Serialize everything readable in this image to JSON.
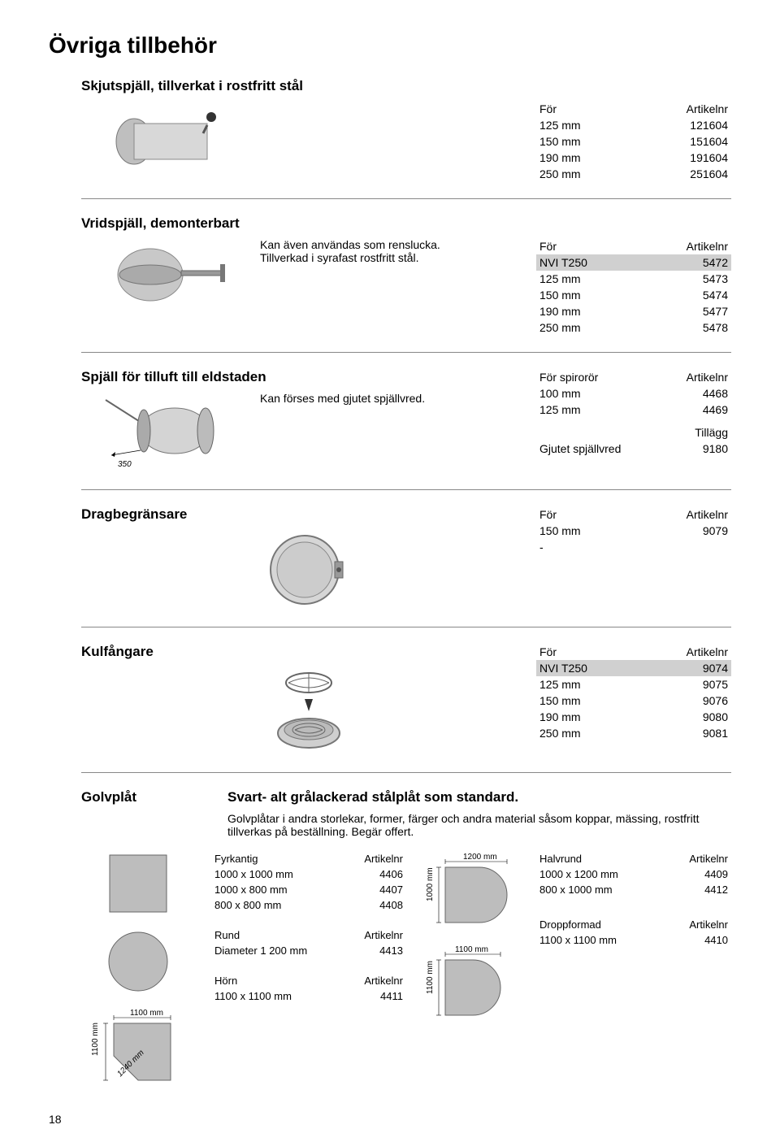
{
  "page_title": "Övriga tillbehör",
  "page_number": "18",
  "skjutspjall": {
    "title": "Skjutspjäll, tillverkat i rostfritt stål",
    "hdr_for": "För",
    "hdr_art": "Artikelnr",
    "rows": [
      {
        "a": "125 mm",
        "b": "121604"
      },
      {
        "a": "150 mm",
        "b": "151604"
      },
      {
        "a": "190 mm",
        "b": "191604"
      },
      {
        "a": "250 mm",
        "b": "251604"
      }
    ]
  },
  "vridspjall": {
    "title": "Vridspjäll, demonterbart",
    "line1": "Kan även användas som renslucka.",
    "line2": "Tillverkad i syrafast rostfritt stål.",
    "hdr_for": "För",
    "hdr_art": "Artikelnr",
    "rows": [
      {
        "a": "NVI T250",
        "b": "5472",
        "hl": true
      },
      {
        "a": "125 mm",
        "b": "5473"
      },
      {
        "a": "150 mm",
        "b": "5474"
      },
      {
        "a": "190 mm",
        "b": "5477"
      },
      {
        "a": "250 mm",
        "b": "5478"
      }
    ]
  },
  "tilluft": {
    "title": "Spjäll för tilluft till eldstaden",
    "line1": "Kan förses med gjutet spjällvred.",
    "hdr_for": "För spirorör",
    "hdr_art": "Artikelnr",
    "rows": [
      {
        "a": "100 mm",
        "b": "4468"
      },
      {
        "a": "125 mm",
        "b": "4469"
      }
    ],
    "extra_title": "Tillägg",
    "extra_rows": [
      {
        "a": "Gjutet spjällvred",
        "b": "9180"
      }
    ],
    "dim_label": "350"
  },
  "drag": {
    "title": "Dragbegränsare",
    "hdr_for": "För",
    "hdr_art": "Artikelnr",
    "rows": [
      {
        "a": "150 mm",
        "b": "9079"
      },
      {
        "a": "-",
        "b": ""
      }
    ]
  },
  "kul": {
    "title": "Kulfångare",
    "hdr_for": "För",
    "hdr_art": "Artikelnr",
    "rows": [
      {
        "a": "NVI T250",
        "b": "9074",
        "hl": true
      },
      {
        "a": "125 mm",
        "b": "9075"
      },
      {
        "a": "150 mm",
        "b": "9076"
      },
      {
        "a": "190 mm",
        "b": "9080"
      },
      {
        "a": "250 mm",
        "b": "9081"
      }
    ]
  },
  "golv": {
    "title": "Golvplåt",
    "heading": "Svart- alt grålackerad stålplåt som standard.",
    "note": "Golvplåtar i andra storlekar, former, färger och andra material såsom koppar, mässing, rostfritt tillverkas på beställning. Begär offert.",
    "fyrkantig": {
      "title": "Fyrkantig",
      "hdr": "Artikelnr",
      "rows": [
        {
          "a": "1000  x 1000 mm",
          "b": "4406"
        },
        {
          "a": "1000  x   800 mm",
          "b": "4407"
        },
        {
          "a": "  800 x   800 mm",
          "b": "4408"
        }
      ]
    },
    "rund": {
      "title": "Rund",
      "hdr": "Artikelnr",
      "rows": [
        {
          "a": "Diameter 1 200 mm",
          "b": "4413"
        }
      ]
    },
    "horn": {
      "title": "Hörn",
      "hdr": "Artikelnr",
      "rows": [
        {
          "a": "1100 x 1100 mm",
          "b": "4411"
        }
      ]
    },
    "halvrund": {
      "title": "Halvrund",
      "hdr": "Artikelnr",
      "rows": [
        {
          "a": "1000 x 1200 mm",
          "b": "4409"
        },
        {
          "a": "  800 x 1000 mm",
          "b": "4412"
        }
      ]
    },
    "dropp": {
      "title": "Droppformad",
      "hdr": "Artikelnr",
      "rows": [
        {
          "a": "1100 x 1100 mm",
          "b": "4410"
        }
      ]
    },
    "dims": {
      "d1100": "1100 mm",
      "d1200": "1200 mm",
      "d1000": "1000 mm",
      "d1240": "1240 mm"
    }
  }
}
